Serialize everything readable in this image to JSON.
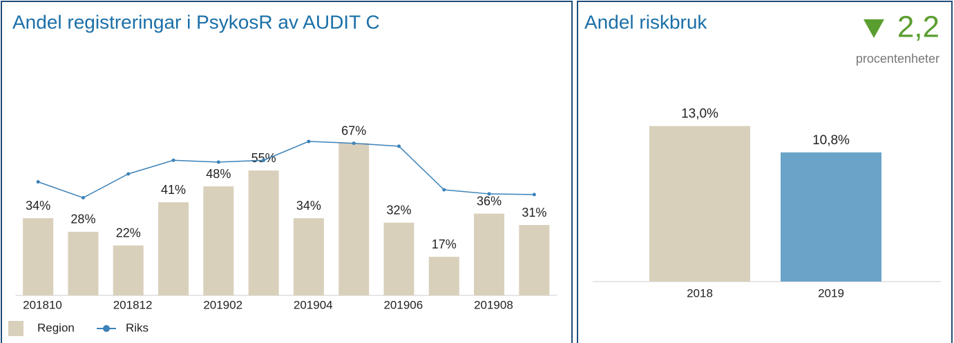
{
  "chart_data": [
    {
      "type": "bar",
      "title": "Andel registreringar i PsykosR av AUDIT C",
      "categories": [
        "201810",
        null,
        "201812",
        null,
        "201902",
        null,
        "201904",
        null,
        "201906",
        null,
        "201908",
        null
      ],
      "series": [
        {
          "name": "Region",
          "type": "bar",
          "color": "#d9d0bb",
          "values": [
            34,
            28,
            22,
            41,
            48,
            55,
            34,
            67,
            32,
            17,
            36,
            31
          ],
          "value_labels": [
            "34%",
            "28%",
            "22%",
            "41%",
            "48%",
            "55%",
            "34%",
            "67%",
            "32%",
            "17%",
            "36%",
            "31%"
          ]
        },
        {
          "name": "Riks",
          "type": "line",
          "color": "#3b82b8",
          "values": [
            50,
            43,
            53.5,
            59.5,
            58.7,
            59.5,
            67.8,
            67,
            65.7,
            46.5,
            44.7,
            44.4
          ]
        }
      ],
      "ylim": [
        0,
        100
      ]
    },
    {
      "type": "bar",
      "title": "Andel riskbruk",
      "change": "2,2",
      "change_unit": "procentenheter",
      "categories": [
        "2018",
        "2019"
      ],
      "values": [
        13.0,
        10.8
      ],
      "value_labels": [
        "13,0%",
        "10,8%"
      ],
      "colors": [
        "#d9d0bb",
        "#6aa3c8"
      ],
      "ylim": [
        0,
        15
      ]
    }
  ]
}
